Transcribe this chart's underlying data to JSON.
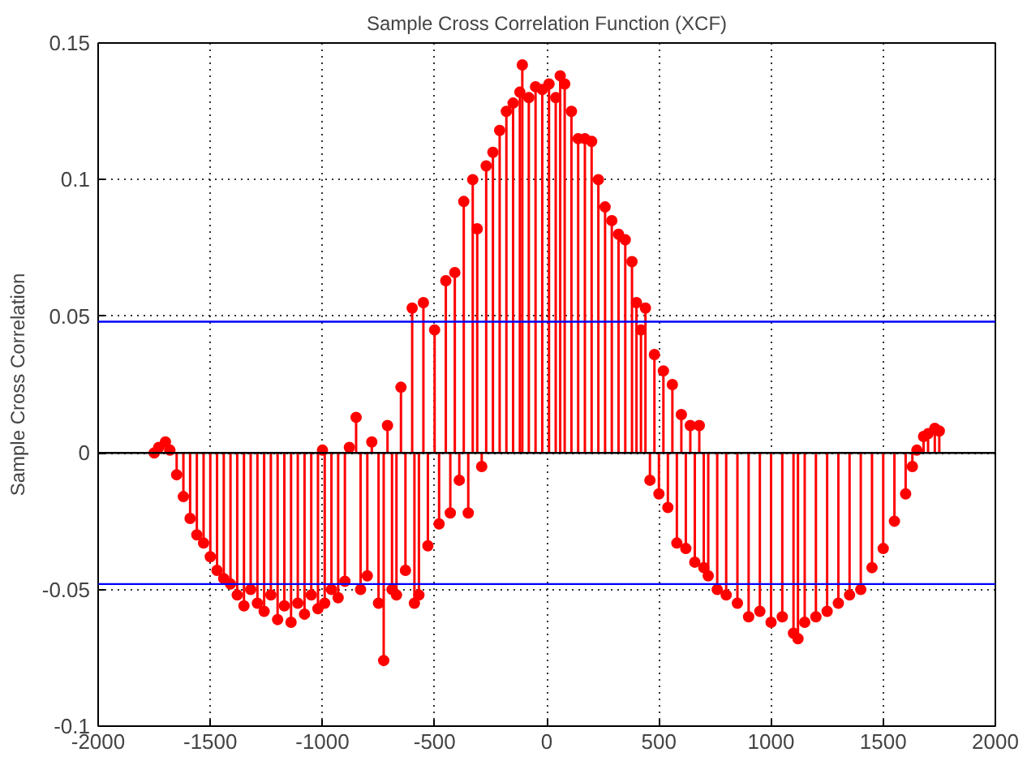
{
  "chart_data": {
    "type": "lollipop",
    "title": "Sample Cross Correlation Function (XCF)",
    "ylabel": "Sample Cross Correlation",
    "x": [
      -1750,
      -1730,
      -1700,
      -1680,
      -1650,
      -1620,
      -1590,
      -1560,
      -1530,
      -1500,
      -1470,
      -1440,
      -1410,
      -1380,
      -1350,
      -1320,
      -1290,
      -1260,
      -1230,
      -1200,
      -1170,
      -1140,
      -1110,
      -1080,
      -1050,
      -1020,
      -1000,
      -990,
      -960,
      -930,
      -900,
      -880,
      -850,
      -830,
      -800,
      -780,
      -750,
      -727,
      -710,
      -690,
      -670,
      -650,
      -630,
      -600,
      -590,
      -570,
      -550,
      -530,
      -500,
      -480,
      -450,
      -430,
      -410,
      -390,
      -370,
      -350,
      -330,
      -310,
      -290,
      -270,
      -240,
      -210,
      -180,
      -150,
      -120,
      -109,
      -80,
      -50,
      -20,
      10,
      40,
      60,
      80,
      110,
      140,
      170,
      200,
      230,
      260,
      290,
      320,
      350,
      380,
      400,
      420,
      440,
      460,
      480,
      500,
      520,
      540,
      560,
      580,
      600,
      620,
      640,
      660,
      680,
      700,
      720,
      760,
      800,
      850,
      900,
      950,
      1000,
      1050,
      1100,
      1120,
      1150,
      1200,
      1250,
      1300,
      1350,
      1400,
      1450,
      1500,
      1550,
      1600,
      1630,
      1650,
      1680,
      1700,
      1730,
      1750
    ],
    "series": [
      {
        "color": "#ff0000",
        "values": [
          0,
          0.002,
          0.004,
          0.001,
          -0.008,
          -0.016,
          -0.024,
          -0.03,
          -0.033,
          -0.038,
          -0.043,
          -0.046,
          -0.048,
          -0.052,
          -0.056,
          -0.05,
          -0.055,
          -0.058,
          -0.052,
          -0.061,
          -0.056,
          -0.062,
          -0.055,
          -0.059,
          -0.052,
          -0.057,
          0.001,
          -0.055,
          -0.05,
          -0.053,
          -0.047,
          0.002,
          0.013,
          -0.05,
          -0.045,
          0.004,
          -0.055,
          -0.076,
          0.01,
          -0.05,
          -0.052,
          0.024,
          -0.043,
          0.053,
          -0.055,
          -0.052,
          0.055,
          -0.034,
          0.045,
          -0.026,
          0.063,
          -0.022,
          0.066,
          -0.01,
          0.092,
          -0.022,
          0.1,
          0.082,
          -0.005,
          0.105,
          0.11,
          0.118,
          0.125,
          0.128,
          0.132,
          0.142,
          0.13,
          0.134,
          0.133,
          0.135,
          0.13,
          0.138,
          0.135,
          0.125,
          0.115,
          0.115,
          0.114,
          0.1,
          0.09,
          0.085,
          0.08,
          0.078,
          0.07,
          0.055,
          0.045,
          0.053,
          -0.01,
          0.036,
          -0.015,
          0.03,
          -0.02,
          0.025,
          -0.033,
          0.014,
          -0.035,
          0.01,
          -0.04,
          0.01,
          -0.042,
          -0.045,
          -0.05,
          -0.052,
          -0.055,
          -0.06,
          -0.058,
          -0.062,
          -0.06,
          -0.066,
          -0.068,
          -0.062,
          -0.06,
          -0.058,
          -0.055,
          -0.052,
          -0.05,
          -0.042,
          -0.035,
          -0.025,
          -0.015,
          -0.005,
          0.001,
          0.006,
          0.007,
          0.009,
          0.008
        ]
      }
    ],
    "xlim": [
      -2000,
      2000
    ],
    "ylim": [
      -0.1,
      0.15
    ],
    "xticks": [
      -2000,
      -1500,
      -1000,
      -500,
      0,
      500,
      1000,
      1500,
      2000
    ],
    "yticks": [
      -0.1,
      -0.05,
      0,
      0.05,
      0.1,
      0.15
    ],
    "ref_lines": [
      {
        "axis": "y",
        "value": 0,
        "color": "#000000"
      },
      {
        "axis": "y",
        "value": 0.048,
        "color": "#0000ff"
      },
      {
        "axis": "y",
        "value": -0.048,
        "color": "#0000ff"
      }
    ],
    "grid": true,
    "marker": "circle"
  }
}
